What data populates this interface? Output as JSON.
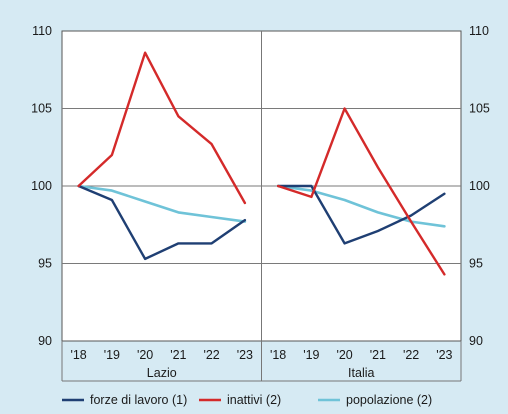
{
  "chart_data": {
    "type": "line",
    "ylim": [
      90,
      110
    ],
    "yticks": [
      90,
      95,
      100,
      105,
      110
    ],
    "grid": true,
    "legend_placement": "bottom",
    "panels": [
      {
        "name": "Lazio",
        "categories": [
          "'18",
          "'19",
          "'20",
          "'21",
          "'22",
          "'23"
        ],
        "series": [
          {
            "key": "forze",
            "values": [
              100,
              99.1,
              95.3,
              96.3,
              96.3,
              97.8
            ]
          },
          {
            "key": "inattivi",
            "values": [
              100,
              102.0,
              108.6,
              104.5,
              102.7,
              98.9
            ]
          },
          {
            "key": "popolazione",
            "values": [
              100,
              99.7,
              99.0,
              98.3,
              98.0,
              97.7
            ]
          }
        ]
      },
      {
        "name": "Italia",
        "categories": [
          "'18",
          "'19",
          "'20",
          "'21",
          "'22",
          "'23"
        ],
        "series": [
          {
            "key": "forze",
            "values": [
              100,
              100.0,
              96.3,
              97.1,
              98.1,
              99.5
            ]
          },
          {
            "key": "inattivi",
            "values": [
              100,
              99.3,
              105.0,
              101.2,
              97.7,
              94.3
            ]
          },
          {
            "key": "popolazione",
            "values": [
              100,
              99.7,
              99.1,
              98.3,
              97.7,
              97.4
            ]
          }
        ]
      }
    ],
    "legend": [
      {
        "key": "forze",
        "label": "forze di lavoro (1)"
      },
      {
        "key": "inattivi",
        "label": "inattivi (2)"
      },
      {
        "key": "popolazione",
        "label": "popolazione (2)"
      }
    ],
    "colors": {
      "forze": "#1f3f73",
      "inattivi": "#d42a2a",
      "popolazione": "#6fc3d8"
    }
  }
}
